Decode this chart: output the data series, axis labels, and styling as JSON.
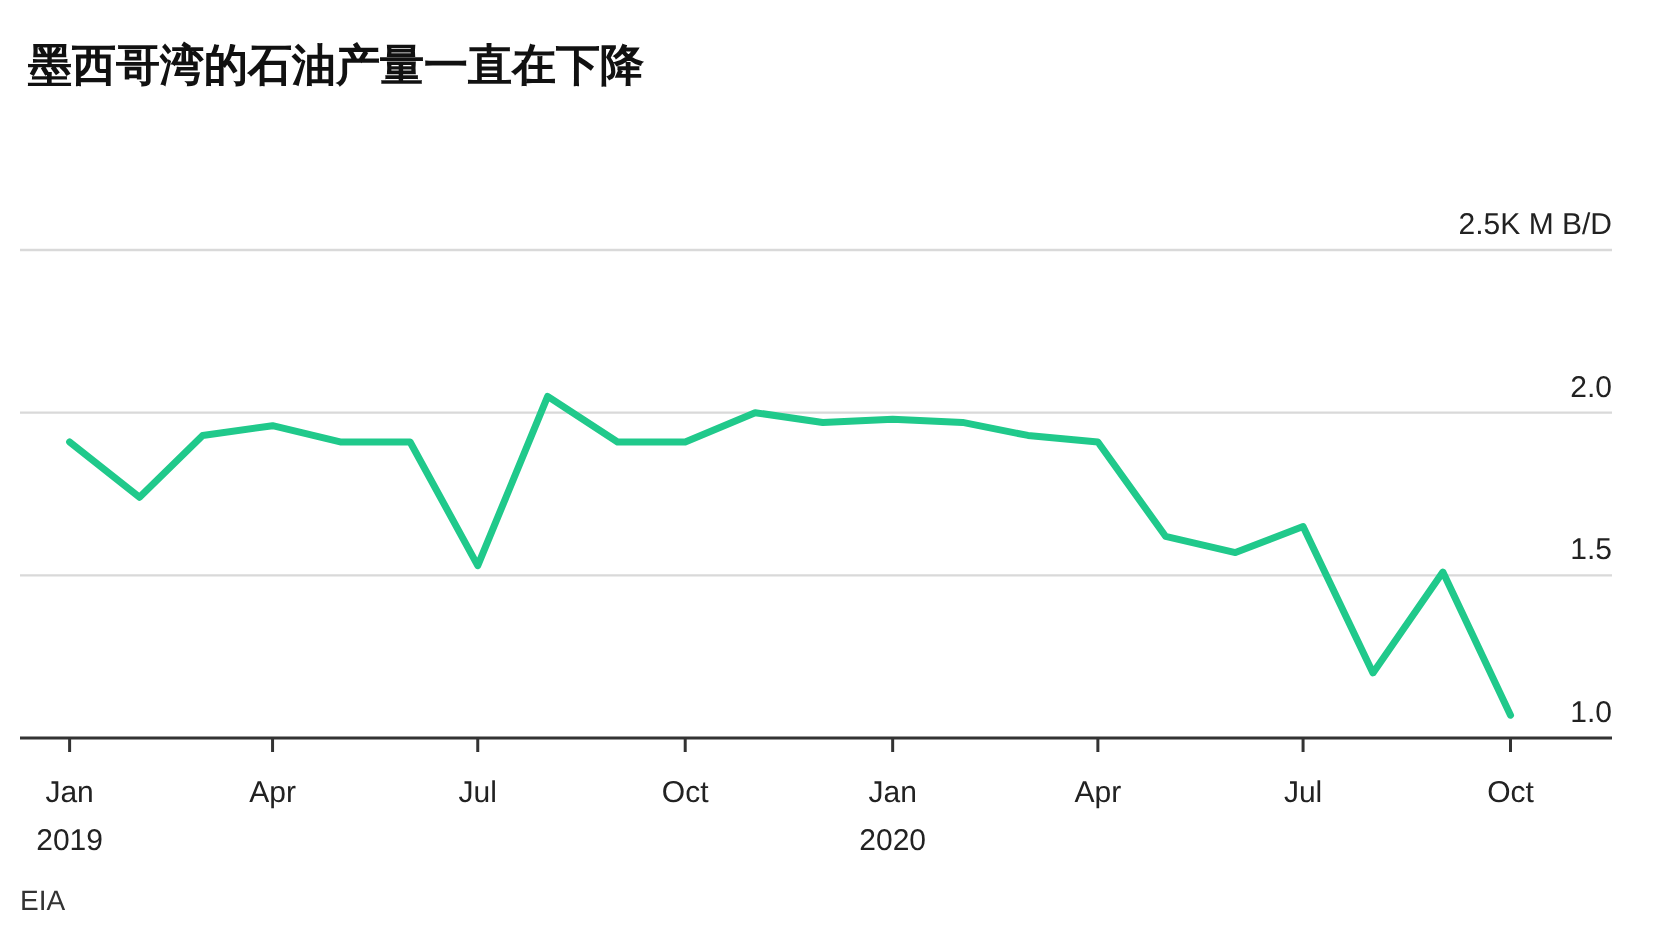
{
  "chart_data": {
    "type": "line",
    "title": "墨西哥湾的石油产量一直在下降",
    "x": [
      "2019-01",
      "2019-02",
      "2019-03",
      "2019-04",
      "2019-05",
      "2019-06",
      "2019-07",
      "2019-08",
      "2019-09",
      "2019-10",
      "2019-11",
      "2019-12",
      "2020-01",
      "2020-02",
      "2020-03",
      "2020-04",
      "2020-05",
      "2020-06",
      "2020-07",
      "2020-08",
      "2020-09",
      "2020-10"
    ],
    "series": [
      {
        "color": "#20c98b",
        "values": [
          1.91,
          1.74,
          1.93,
          1.96,
          1.91,
          1.91,
          1.53,
          2.05,
          1.91,
          1.91,
          2.0,
          1.97,
          1.98,
          1.97,
          1.93,
          1.91,
          1.62,
          1.57,
          1.65,
          1.2,
          1.51,
          1.07
        ]
      }
    ],
    "xlim": [
      "2018-12-10",
      "2020-11-15"
    ],
    "xticks": [
      {
        "value": "2019-01",
        "label": "Jan\n2019"
      },
      {
        "value": "2019-04",
        "label": "Apr"
      },
      {
        "value": "2019-07",
        "label": "Jul"
      },
      {
        "value": "2019-10",
        "label": "Oct"
      },
      {
        "value": "2020-01",
        "label": "Jan\n2020"
      },
      {
        "value": "2020-04",
        "label": "Apr"
      },
      {
        "value": "2020-07",
        "label": "Jul"
      },
      {
        "value": "2020-10",
        "label": "Oct"
      }
    ],
    "ylim": [
      1.0,
      2.5
    ],
    "yticks": [
      {
        "value": 1.0,
        "label": "1.0"
      },
      1.5,
      {
        "value": 2.0,
        "label": "2.0"
      },
      {
        "value": 2.5,
        "label": "2.5K M B/D"
      }
    ],
    "grid": "y",
    "marker": "none",
    "line_style": "solid",
    "annotations": [
      "EIA"
    ]
  }
}
